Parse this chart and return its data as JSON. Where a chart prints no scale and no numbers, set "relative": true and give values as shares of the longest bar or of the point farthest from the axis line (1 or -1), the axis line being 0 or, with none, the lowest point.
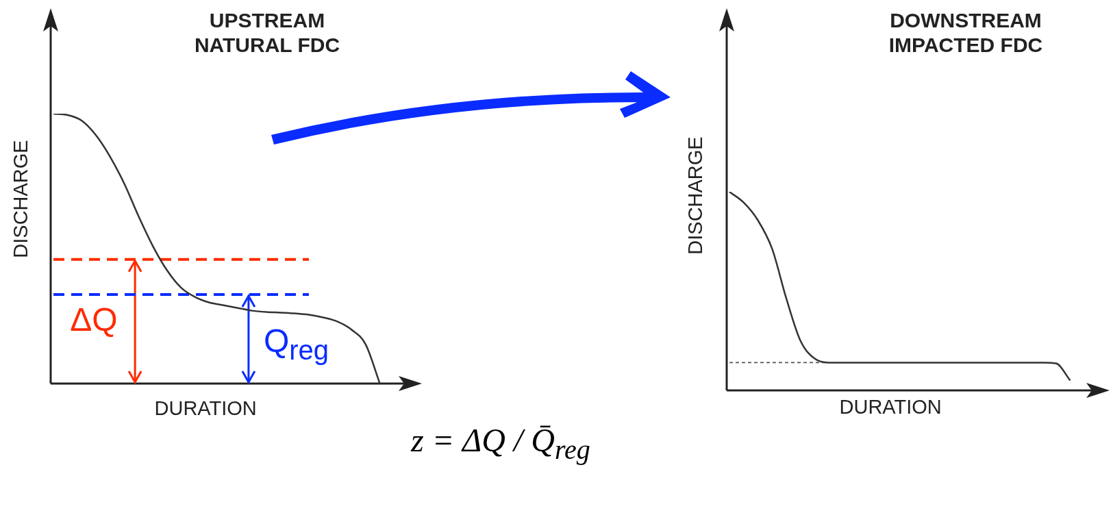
{
  "chart_data": [
    {
      "type": "line",
      "title": "UPSTREAM NATURAL FDC",
      "xlabel": "DURATION",
      "ylabel": "DISCHARGE",
      "relative": true,
      "categories": [
        null,
        null,
        null,
        null,
        null,
        null,
        null,
        null,
        null,
        null,
        null,
        null,
        null,
        null,
        null,
        null,
        null,
        null,
        null,
        null,
        null,
        null,
        null,
        null,
        null,
        null
      ],
      "series": [
        {
          "color": "#333333",
          "values": [
            1,
            0.995,
            0.974,
            0.92,
            0.84,
            0.74,
            0.62,
            0.51,
            0.42,
            0.355,
            0.32,
            0.3,
            0.29,
            0.28,
            0.27,
            0.265,
            0.263,
            0.26,
            0.255,
            0.245,
            0.23,
            0.2,
            0.145,
            0,
            null,
            null
          ]
        },
        {
          "color": "#ff2a00",
          "line_style": "dashed",
          "values": [
            0.46,
            0.46,
            0.46,
            0.46,
            0.46,
            0.46,
            0.46,
            0.46,
            0.46,
            0.46,
            0.46,
            0.46,
            0.46,
            0.46,
            0.46,
            0.46,
            0.46,
            0.46,
            0.46,
            null,
            null,
            null,
            null,
            null,
            null,
            null
          ]
        },
        {
          "color": "#0a2cff",
          "line_style": "dashed",
          "values": [
            0.33,
            0.33,
            0.33,
            0.33,
            0.33,
            0.33,
            0.33,
            0.33,
            0.33,
            0.33,
            0.33,
            0.33,
            0.33,
            0.33,
            0.33,
            0.33,
            0.33,
            0.33,
            0.33,
            null,
            null,
            null,
            null,
            null,
            null,
            null
          ]
        }
      ],
      "annotations": [
        {
          "text": "ΔQ",
          "y": 0.46
        },
        {
          "text": "Q$_{reg}$",
          "y": 0.33
        },
        "z = ΔQ / Q̄$_{reg}$"
      ]
    },
    {
      "type": "line",
      "title": "DOWNSTREAM IMPACTED FDC",
      "xlabel": "DURATION",
      "ylabel": "DISCHARGE",
      "relative": true,
      "categories": [
        null,
        null,
        null,
        null,
        null,
        null,
        null,
        null,
        null,
        null,
        null,
        null,
        null,
        null,
        null,
        null,
        null,
        null,
        null,
        null,
        null,
        null,
        null,
        null,
        null,
        null,
        null
      ],
      "series": [
        {
          "color": "#333333",
          "values": [
            1,
            0.946,
            0.857,
            0.714,
            0.464,
            0.25,
            0.16,
            0.14,
            0.14,
            0.14,
            0.14,
            0.14,
            0.14,
            0.14,
            0.14,
            0.14,
            0.14,
            0.14,
            0.14,
            0.14,
            0.14,
            0.14,
            0.14,
            0.136,
            0.05,
            null,
            null
          ]
        },
        {
          "color": "#555555",
          "line_style": "dashed",
          "values": [
            0.14,
            0.14,
            0.14,
            0.14,
            0.14,
            0.14,
            0.14,
            0.14,
            null,
            null,
            null,
            null,
            null,
            null,
            null,
            null,
            null,
            null,
            null,
            null,
            null,
            null,
            null,
            null,
            null,
            null,
            null
          ]
        }
      ]
    }
  ]
}
